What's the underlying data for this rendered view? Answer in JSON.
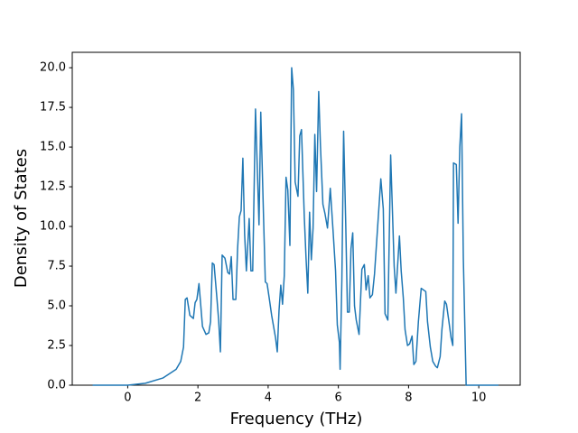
{
  "chart_data": {
    "type": "line",
    "xlabel": "Frequency (THz)",
    "ylabel": "Density of States",
    "x": [
      -1,
      0,
      0.5,
      1.0,
      1.38,
      1.51,
      1.59,
      1.64,
      1.69,
      1.77,
      1.87,
      1.92,
      1.97,
      2.03,
      2.13,
      2.23,
      2.31,
      2.36,
      2.41,
      2.46,
      2.54,
      2.59,
      2.64,
      2.69,
      2.77,
      2.85,
      2.9,
      2.95,
      3.0,
      3.08,
      3.13,
      3.18,
      3.23,
      3.28,
      3.33,
      3.38,
      3.46,
      3.51,
      3.56,
      3.64,
      3.74,
      3.79,
      3.87,
      3.92,
      3.97,
      4.03,
      4.1,
      4.21,
      4.26,
      4.31,
      4.36,
      4.41,
      4.46,
      4.51,
      4.56,
      4.62,
      4.67,
      4.72,
      4.77,
      4.85,
      4.9,
      4.95,
      5.03,
      5.08,
      5.13,
      5.18,
      5.23,
      5.28,
      5.33,
      5.38,
      5.44,
      5.49,
      5.56,
      5.62,
      5.69,
      5.77,
      5.85,
      5.92,
      5.97,
      6.03,
      6.05,
      6.1,
      6.15,
      6.21,
      6.26,
      6.31,
      6.36,
      6.41,
      6.46,
      6.51,
      6.59,
      6.67,
      6.74,
      6.79,
      6.85,
      6.9,
      6.97,
      7.03,
      7.21,
      7.28,
      7.33,
      7.41,
      7.49,
      7.54,
      7.59,
      7.64,
      7.74,
      7.79,
      7.85,
      7.9,
      7.97,
      8.03,
      8.1,
      8.15,
      8.21,
      8.28,
      8.36,
      8.49,
      8.54,
      8.62,
      8.69,
      8.77,
      8.82,
      8.9,
      8.95,
      9.03,
      9.08,
      9.15,
      9.21,
      9.26,
      9.28,
      9.36,
      9.41,
      9.46,
      9.51,
      9.56,
      9.64,
      10.56
    ],
    "values": [
      0,
      0,
      0.12,
      0.45,
      1.0,
      1.5,
      2.4,
      5.4,
      5.5,
      4.4,
      4.2,
      5.2,
      5.4,
      6.4,
      3.7,
      3.2,
      3.3,
      4.0,
      7.7,
      7.6,
      5.5,
      4.1,
      2.1,
      8.2,
      8.0,
      7.1,
      7.0,
      8.1,
      5.4,
      5.4,
      8.6,
      10.6,
      11.0,
      14.3,
      9.5,
      7.2,
      10.5,
      7.2,
      7.2,
      17.4,
      10.1,
      17.2,
      10.5,
      6.5,
      6.4,
      5.5,
      4.4,
      3.0,
      2.1,
      4.7,
      6.3,
      5.1,
      6.9,
      13.1,
      12.3,
      8.8,
      20.0,
      18.6,
      12.8,
      11.9,
      15.7,
      16.1,
      10.6,
      8.0,
      5.8,
      10.9,
      7.9,
      9.9,
      15.8,
      12.2,
      18.5,
      15.1,
      11.4,
      10.8,
      9.9,
      12.4,
      9.7,
      7.2,
      3.8,
      2.7,
      1.0,
      6.6,
      16.0,
      10.2,
      4.6,
      4.6,
      8.6,
      9.6,
      5.0,
      4.1,
      3.2,
      7.3,
      7.6,
      6.0,
      6.9,
      5.5,
      5.7,
      7.0,
      13.0,
      11.1,
      4.5,
      4.1,
      14.5,
      11.0,
      7.5,
      5.8,
      9.4,
      7.2,
      5.5,
      3.5,
      2.5,
      2.6,
      3.1,
      1.3,
      1.5,
      4.0,
      6.1,
      5.9,
      4.0,
      2.4,
      1.5,
      1.2,
      1.1,
      1.8,
      3.5,
      5.3,
      5.1,
      4.0,
      3.0,
      2.5,
      14.0,
      13.9,
      10.2,
      15.0,
      17.1,
      8.0,
      0,
      0
    ],
    "color": "#1f77b4",
    "xlim": [
      -1.58,
      11.18
    ],
    "xticks": [
      0,
      2,
      4,
      6,
      8,
      10
    ],
    "ylim": [
      0,
      20.97
    ],
    "yticks": [
      {
        "value": 0,
        "label": "0.0"
      },
      2.5,
      {
        "value": 5,
        "label": "5.0"
      },
      7.5,
      {
        "value": 10,
        "label": "10.0"
      },
      12.5,
      {
        "value": 15,
        "label": "15.0"
      },
      17.5,
      {
        "value": 20,
        "label": "20.0"
      }
    ]
  }
}
